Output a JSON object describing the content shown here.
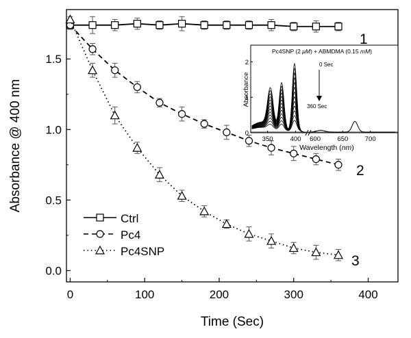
{
  "chart_data": [
    {
      "type": "scatter",
      "title": "",
      "xlabel": "Time (Sec)",
      "ylabel": "Absorbance @ 400 nm",
      "xlim": [
        -5,
        440
      ],
      "ylim": [
        -0.08,
        1.85
      ],
      "xticks": [
        0,
        100,
        200,
        300,
        400
      ],
      "yticks": [
        0.0,
        0.5,
        1.0,
        1.5
      ],
      "xtick_labels": [
        "0",
        "100",
        "200",
        "300",
        "400"
      ],
      "ytick_labels": [
        "0.0",
        "0.5",
        "1.0",
        "1.5"
      ],
      "legend_position": "bottom-left",
      "series": [
        {
          "name": "Ctrl",
          "label": "1",
          "marker": "square",
          "line": "solid",
          "x": [
            0,
            30,
            60,
            90,
            120,
            150,
            180,
            210,
            240,
            270,
            300,
            330,
            360
          ],
          "y": [
            1.74,
            1.74,
            1.74,
            1.75,
            1.74,
            1.75,
            1.74,
            1.74,
            1.74,
            1.74,
            1.73,
            1.73,
            1.73
          ],
          "err": [
            0.03,
            0.06,
            0.04,
            0.04,
            0.03,
            0.05,
            0.03,
            0.03,
            0.03,
            0.04,
            0.03,
            0.04,
            0.03
          ]
        },
        {
          "name": "Pc4",
          "label": "2",
          "marker": "circle",
          "line": "dashed",
          "x": [
            0,
            30,
            60,
            90,
            120,
            150,
            180,
            210,
            240,
            270,
            300,
            330,
            360
          ],
          "y": [
            1.74,
            1.57,
            1.42,
            1.3,
            1.19,
            1.11,
            1.04,
            0.98,
            0.92,
            0.87,
            0.83,
            0.79,
            0.75
          ],
          "err": [
            0.03,
            0.04,
            0.05,
            0.04,
            0.03,
            0.05,
            0.03,
            0.05,
            0.04,
            0.05,
            0.05,
            0.04,
            0.04
          ]
        },
        {
          "name": "Pc4SNP",
          "label": "3",
          "marker": "triangle",
          "line": "dotted",
          "x": [
            0,
            30,
            60,
            90,
            120,
            150,
            180,
            210,
            240,
            270,
            300,
            330,
            360
          ],
          "y": [
            1.78,
            1.42,
            1.1,
            0.87,
            0.68,
            0.53,
            0.42,
            0.33,
            0.26,
            0.21,
            0.16,
            0.13,
            0.11
          ],
          "err": [
            0.02,
            0.05,
            0.06,
            0.04,
            0.05,
            0.04,
            0.04,
            0.03,
            0.05,
            0.05,
            0.04,
            0.05,
            0.04
          ]
        }
      ]
    },
    {
      "type": "line",
      "title": "Pc4SNP (2 μM) + ABMDMA (0.15 mM)",
      "xlabel": "Wavelength (nm)",
      "ylabel": "Absorbance",
      "xtick_labels": [
        "350",
        "400",
        "600",
        "650",
        "700"
      ],
      "ytick_labels": [
        "0",
        "1",
        "2"
      ],
      "axis_break": "between 420 and 590 nm",
      "annotations": [
        "0 Sec",
        "360 Sec"
      ],
      "xlabel_main": "Wavelength (",
      "xlabel_unit": "nm",
      "xlabel_close": ")",
      "title_part1": "Pc4SNP (2 ",
      "title_unit1": "μM",
      "title_part2": ") + ABMDMA (0.15 ",
      "title_unit2": "mM",
      "title_part3": ")",
      "peak_heights_start": [
        1.05,
        1.33,
        1.9
      ],
      "peak_heights_end": [
        0.12,
        0.18,
        0.3
      ],
      "curve_count": 13,
      "q_band_height": 0.3
    }
  ]
}
